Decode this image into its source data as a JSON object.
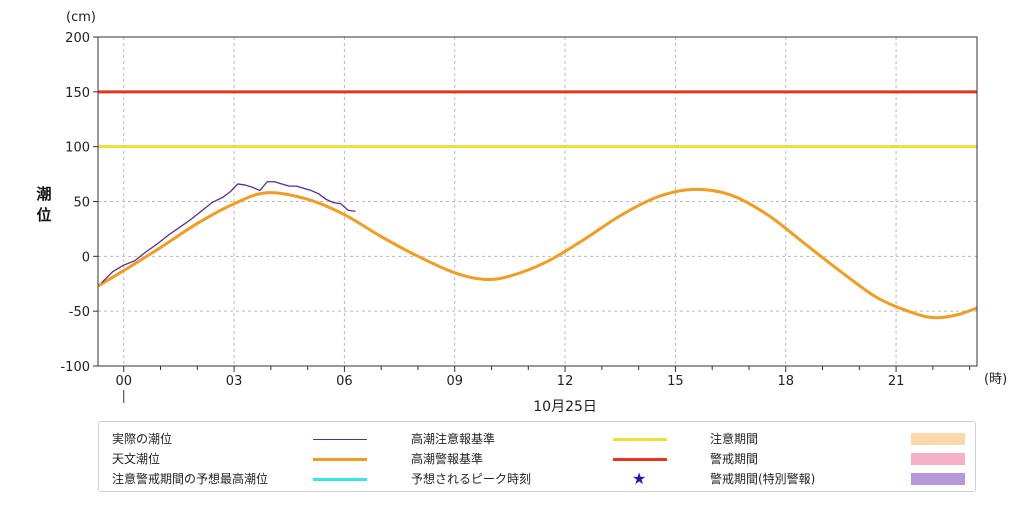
{
  "chart_data": {
    "type": "line",
    "y_unit": "(cm)",
    "x_unit": "(時)",
    "ylabel": "潮位",
    "date_label": "10月25日",
    "ylim": [
      -100,
      200
    ],
    "yticks": [
      200,
      150,
      100,
      50,
      0,
      -50,
      -100
    ],
    "xlim": [
      -0.7,
      23.2
    ],
    "xticks": [
      {
        "hour": 0,
        "label": "00"
      },
      {
        "hour": 3,
        "label": "03"
      },
      {
        "hour": 6,
        "label": "06"
      },
      {
        "hour": 9,
        "label": "09"
      },
      {
        "hour": 12,
        "label": "12"
      },
      {
        "hour": 15,
        "label": "15"
      },
      {
        "hour": 18,
        "label": "18"
      },
      {
        "hour": 21,
        "label": "21"
      }
    ],
    "grid": true,
    "thresholds": [
      {
        "name": "高潮警報基準",
        "value": 150,
        "color": "#e8341c"
      },
      {
        "name": "高潮注意報基準",
        "value": 100,
        "color": "#ece034"
      }
    ],
    "series": [
      {
        "name": "天文潮位",
        "color": "#f39c1f",
        "points": [
          [
            -0.7,
            -27
          ],
          [
            0,
            -13
          ],
          [
            1,
            8
          ],
          [
            2,
            30
          ],
          [
            3,
            48
          ],
          [
            3.9,
            58
          ],
          [
            5,
            52
          ],
          [
            6,
            38
          ],
          [
            7,
            18
          ],
          [
            8,
            0
          ],
          [
            9,
            -15
          ],
          [
            9.8,
            -21
          ],
          [
            10.5,
            -18
          ],
          [
            11.5,
            -5
          ],
          [
            12.5,
            15
          ],
          [
            13.5,
            37
          ],
          [
            14.5,
            54
          ],
          [
            15.5,
            61
          ],
          [
            16.5,
            56
          ],
          [
            17.5,
            38
          ],
          [
            18.5,
            12
          ],
          [
            19.5,
            -14
          ],
          [
            20.5,
            -38
          ],
          [
            21.5,
            -52
          ],
          [
            22.1,
            -56
          ],
          [
            22.7,
            -53
          ],
          [
            23.2,
            -47
          ]
        ]
      },
      {
        "name": "実際の潮位",
        "color": "#5b2c92",
        "points": [
          [
            -0.6,
            -24
          ],
          [
            -0.3,
            -14
          ],
          [
            0,
            -8
          ],
          [
            0.3,
            -4
          ],
          [
            0.6,
            4
          ],
          [
            0.9,
            11
          ],
          [
            1.2,
            19
          ],
          [
            1.5,
            26
          ],
          [
            1.8,
            33
          ],
          [
            2.1,
            41
          ],
          [
            2.4,
            49
          ],
          [
            2.7,
            54
          ],
          [
            2.9,
            59
          ],
          [
            3.1,
            66
          ],
          [
            3.3,
            65
          ],
          [
            3.5,
            63
          ],
          [
            3.7,
            60
          ],
          [
            3.9,
            68
          ],
          [
            4.1,
            68
          ],
          [
            4.3,
            66
          ],
          [
            4.5,
            64
          ],
          [
            4.7,
            64
          ],
          [
            4.9,
            62
          ],
          [
            5.1,
            60
          ],
          [
            5.3,
            57
          ],
          [
            5.5,
            52
          ],
          [
            5.7,
            49
          ],
          [
            5.9,
            48
          ],
          [
            6.1,
            42
          ],
          [
            6.3,
            41
          ]
        ]
      }
    ]
  },
  "legend": {
    "col1": [
      {
        "label": "実際の潮位",
        "symbol": "line",
        "color": "#5b2c92"
      },
      {
        "label": "天文潮位",
        "symbol": "thickline",
        "color": "#f39c1f"
      },
      {
        "label": "注意警戒期間の予想最高潮位",
        "symbol": "thickline",
        "color": "#35e7e1"
      }
    ],
    "col2": [
      {
        "label": "高潮注意報基準",
        "symbol": "thickline",
        "color": "#ece034"
      },
      {
        "label": "高潮警報基準",
        "symbol": "thickline",
        "color": "#e8341c"
      },
      {
        "label": "予想されるピーク時刻",
        "symbol": "star",
        "glyph": "★",
        "color": "#1a1ab8"
      }
    ],
    "col3": [
      {
        "label": "注意期間",
        "symbol": "box",
        "color": "#fbd9ac"
      },
      {
        "label": "警戒期間",
        "symbol": "box",
        "color": "#f5b0c8"
      },
      {
        "label": "警戒期間(特別警報)",
        "symbol": "box",
        "color": "#b598dc"
      }
    ]
  }
}
